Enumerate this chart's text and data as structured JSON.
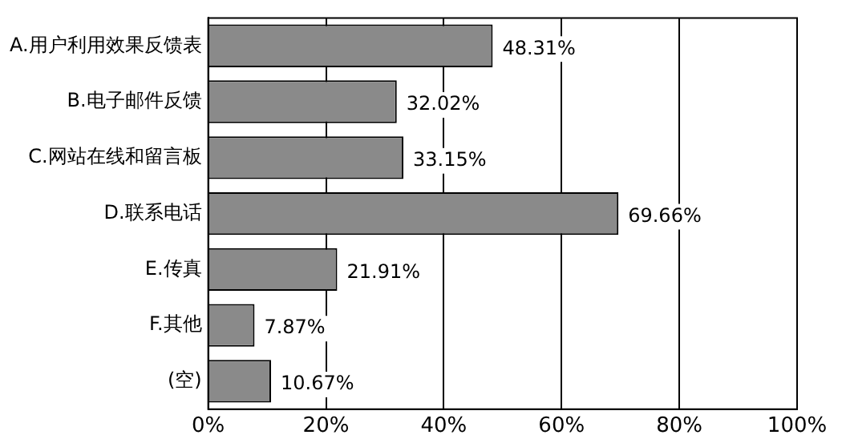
{
  "chart_data": {
    "type": "bar",
    "orientation": "horizontal",
    "categories": [
      "A.用户利用效果反馈表",
      "B.电子邮件反馈",
      "C.网站在线和留言板",
      "D.联系电话",
      "E.传真",
      "F.其他",
      "(空)"
    ],
    "values": [
      48.31,
      32.02,
      33.15,
      69.66,
      21.91,
      7.87,
      10.67
    ],
    "value_labels": [
      "48.31%",
      "32.02%",
      "33.15%",
      "69.66%",
      "21.91%",
      "7.87%",
      "10.67%"
    ],
    "color": "#8a8a8a",
    "xlim": [
      0,
      100
    ],
    "xticks": [
      {
        "value": 0,
        "label": "0%"
      },
      {
        "value": 20,
        "label": "20%"
      },
      {
        "value": 40,
        "label": "40%"
      },
      {
        "value": 60,
        "label": "60%"
      },
      {
        "value": 80,
        "label": "80%"
      },
      {
        "value": 100,
        "label": "100%"
      }
    ],
    "grid": "x",
    "legend": false
  }
}
